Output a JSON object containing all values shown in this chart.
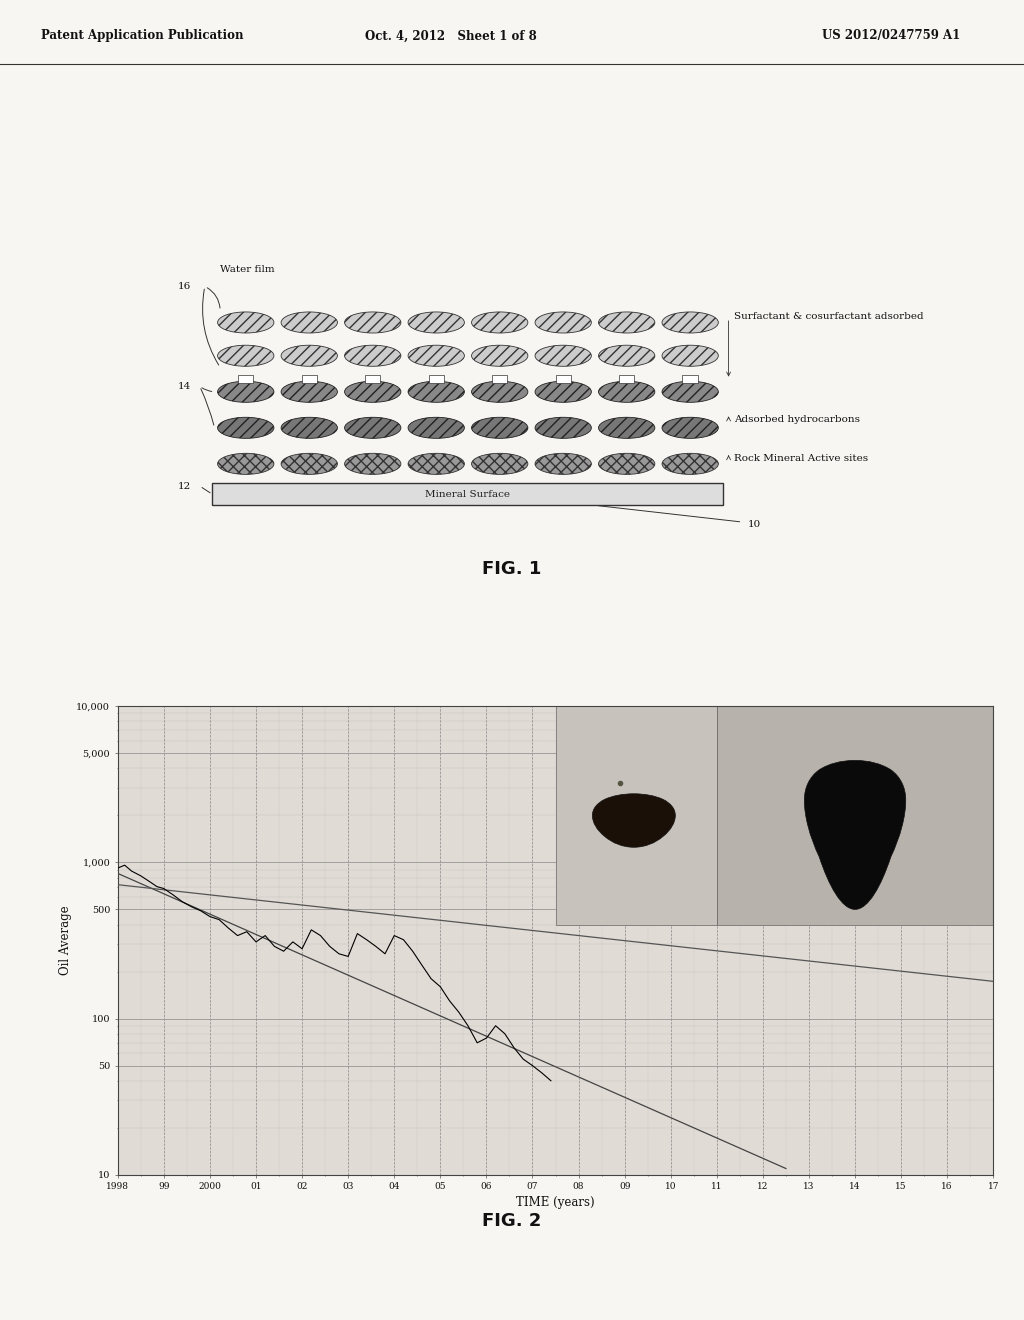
{
  "header_left": "Patent Application Publication",
  "header_mid": "Oct. 4, 2012   Sheet 1 of 8",
  "header_right": "US 2012/0247759 A1",
  "fig1_label": "FIG. 1",
  "fig2_label": "FIG. 2",
  "fig2_xlabel": "TIME (years)",
  "fig2_ylabel": "Oil Average",
  "fig2_yticks": [
    10,
    50,
    100,
    500,
    1000,
    5000,
    10000
  ],
  "fig2_ytick_labels": [
    "10",
    "50",
    "100",
    "500",
    "1,000",
    "5,000",
    "10,000"
  ],
  "fig2_xtick_labels": [
    "1998",
    "99",
    "2000",
    "01",
    "02",
    "03",
    "04",
    "05",
    "06",
    "07",
    "08",
    "09",
    "10",
    "11",
    "12",
    "13",
    "14",
    "15",
    "16",
    "17"
  ],
  "page_bg": "#f8f6f3",
  "chart_bg": "#e0dbd5"
}
